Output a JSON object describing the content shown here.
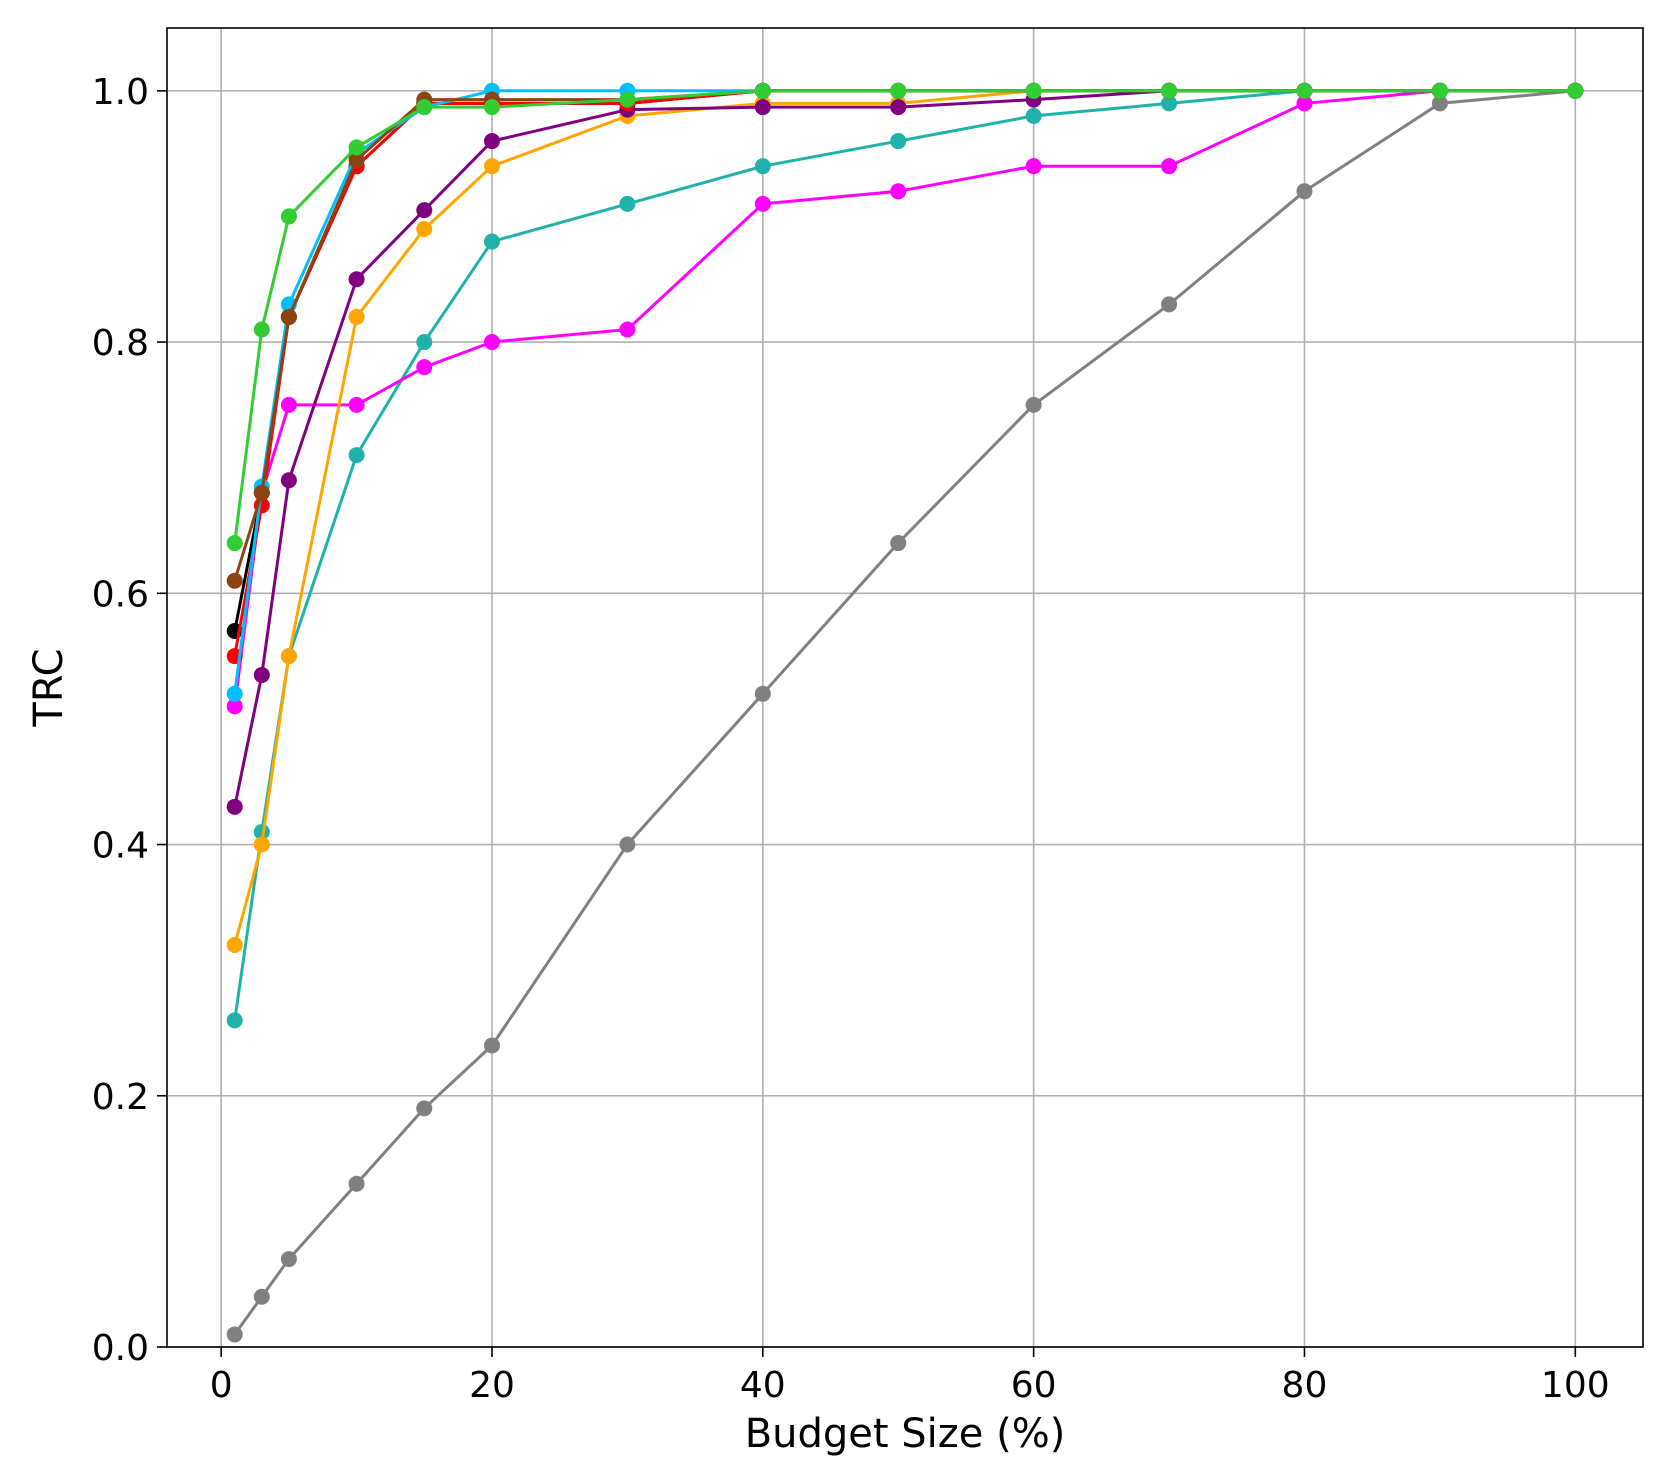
{
  "chart_data": {
    "type": "line",
    "title": "",
    "xlabel": "Budget Size (%)",
    "ylabel": "TRC",
    "xlim": [
      -4,
      105
    ],
    "ylim": [
      0.0,
      1.05
    ],
    "xticks": [
      0,
      20,
      40,
      60,
      80,
      100
    ],
    "yticks": [
      0.0,
      0.2,
      0.4,
      0.6,
      0.8,
      1.0
    ],
    "xtick_labels": [
      "0",
      "20",
      "40",
      "60",
      "80",
      "100"
    ],
    "ytick_labels": [
      "0.0",
      "0.2",
      "0.4",
      "0.6",
      "0.8",
      "1.0"
    ],
    "grid": true,
    "legend": "none",
    "x": [
      1,
      3,
      5,
      10,
      15,
      20,
      30,
      40,
      50,
      60,
      70,
      80,
      90,
      100
    ],
    "series": [
      {
        "color": "#808080",
        "values": [
          0.01,
          0.04,
          0.07,
          0.13,
          0.19,
          0.24,
          0.4,
          0.52,
          0.64,
          0.75,
          0.83,
          0.92,
          0.99,
          1.0
        ]
      },
      {
        "color": "#20b2aa",
        "values": [
          0.26,
          0.41,
          0.55,
          0.71,
          0.8,
          0.88,
          0.91,
          0.94,
          0.96,
          0.98,
          0.99,
          1.0,
          1.0,
          1.0
        ]
      },
      {
        "color": "#ff00ff",
        "values": [
          0.51,
          0.68,
          0.75,
          0.75,
          0.78,
          0.8,
          0.81,
          0.91,
          0.92,
          0.94,
          0.94,
          0.99,
          1.0,
          1.0
        ]
      },
      {
        "color": "#ffa500",
        "values": [
          0.32,
          0.4,
          0.55,
          0.82,
          0.89,
          0.94,
          0.98,
          0.99,
          0.99,
          1.0,
          1.0,
          1.0,
          1.0,
          1.0
        ]
      },
      {
        "color": "#800080",
        "values": [
          0.43,
          0.535,
          0.69,
          0.85,
          0.905,
          0.96,
          0.985,
          0.987,
          0.987,
          0.993,
          1.0,
          1.0,
          1.0,
          1.0
        ]
      },
      {
        "color": "#000000",
        "values": [
          0.57,
          0.68,
          0.82,
          0.94,
          0.99,
          0.99,
          0.99,
          1.0,
          1.0,
          1.0,
          1.0,
          1.0,
          1.0,
          1.0
        ]
      },
      {
        "color": "#ff0000",
        "values": [
          0.55,
          0.67,
          0.82,
          0.94,
          0.99,
          0.99,
          0.99,
          1.0,
          1.0,
          1.0,
          1.0,
          1.0,
          1.0,
          1.0
        ]
      },
      {
        "color": "#00bfff",
        "values": [
          0.52,
          0.685,
          0.83,
          0.95,
          0.987,
          1.0,
          1.0,
          1.0,
          1.0,
          1.0,
          1.0,
          1.0,
          1.0,
          1.0
        ]
      },
      {
        "color": "#8b4513",
        "values": [
          0.61,
          0.68,
          0.82,
          0.945,
          0.993,
          0.993,
          0.993,
          1.0,
          1.0,
          1.0,
          1.0,
          1.0,
          1.0,
          1.0
        ]
      },
      {
        "color": "#32cd32",
        "values": [
          0.64,
          0.81,
          0.9,
          0.955,
          0.987,
          0.987,
          0.993,
          1.0,
          1.0,
          1.0,
          1.0,
          1.0,
          1.0,
          1.0
        ]
      }
    ]
  }
}
